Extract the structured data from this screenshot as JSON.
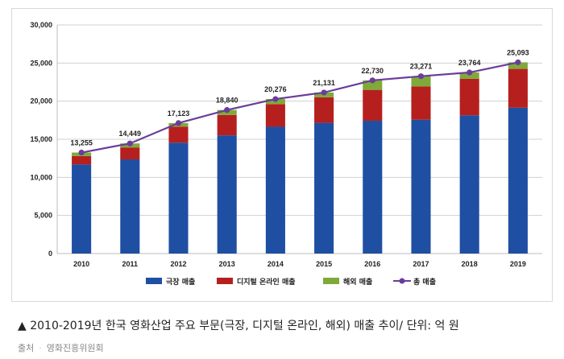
{
  "chart_data": {
    "type": "bar",
    "stacked": true,
    "categories": [
      "2010",
      "2011",
      "2012",
      "2013",
      "2014",
      "2015",
      "2016",
      "2017",
      "2018",
      "2019"
    ],
    "series": [
      {
        "name": "극장 매출",
        "color": "#1f4fa3",
        "values": [
          11684,
          12358,
          14551,
          15513,
          16641,
          17154,
          17432,
          17566,
          18140,
          19140
        ]
      },
      {
        "name": "디지털 온라인 매출",
        "color": "#b5201e",
        "values": [
          1109,
          1568,
          2097,
          2676,
          2971,
          3349,
          4050,
          4362,
          4789,
          5093
        ]
      },
      {
        "name": "해외 매출",
        "color": "#7faa3a",
        "values": [
          462,
          523,
          475,
          651,
          664,
          628,
          1248,
          1343,
          835,
          860
        ]
      }
    ],
    "line": {
      "name": "총 매출",
      "color": "#6a3d9a",
      "values": [
        13255,
        14449,
        17123,
        18840,
        20276,
        21131,
        22730,
        23271,
        23764,
        25093
      ]
    },
    "data_labels": [
      "13,255",
      "14,449",
      "17,123",
      "18,840",
      "20,276",
      "21,131",
      "22,730",
      "23,271",
      "23,764",
      "25,093"
    ],
    "ylim": [
      0,
      30000
    ],
    "yticks": [
      0,
      5000,
      10000,
      15000,
      20000,
      25000,
      30000
    ],
    "ytick_labels": [
      "0",
      "5,000",
      "10,000",
      "15,000",
      "20,000",
      "25,000",
      "30,000"
    ],
    "grid": true,
    "legend_position": "bottom"
  },
  "caption": "▲ 2010-2019년 한국 영화산업 주요 부문(극장, 디지털 온라인, 해외) 매출 추이/ 단위: 억 원",
  "source": {
    "label": "출처",
    "value": "영화진흥위원회"
  }
}
